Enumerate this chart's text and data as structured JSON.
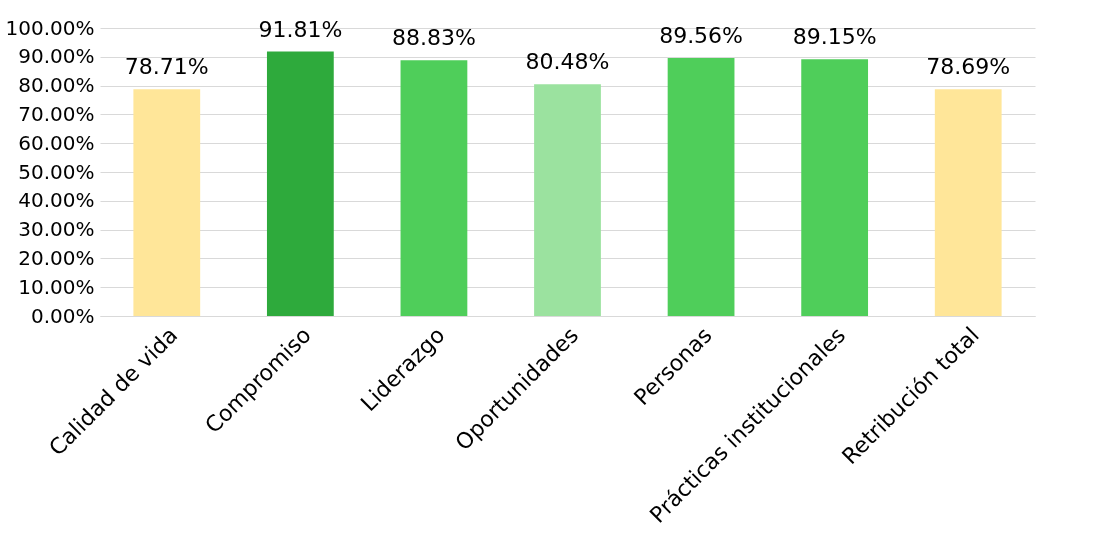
{
  "chart_data": {
    "type": "bar",
    "categories": [
      "Calidad de vida",
      "Compromiso",
      "Liderazgo",
      "Oportunidades",
      "Personas",
      "Prácticas institucionales",
      "Retribución total"
    ],
    "values": [
      78.71,
      91.81,
      88.83,
      80.48,
      89.56,
      89.15,
      78.69
    ],
    "colors": [
      "#ffe699",
      "#2eaa3c",
      "#4fce5a",
      "#9be29f",
      "#4fce5a",
      "#4fce5a",
      "#ffe699"
    ],
    "value_labels": [
      "78.71%",
      "91.81%",
      "88.83%",
      "80.48%",
      "89.56%",
      "89.15%",
      "78.69%"
    ],
    "ylim": [
      0,
      100
    ],
    "yticks": [
      {
        "value": 0,
        "label": "0.00%"
      },
      {
        "value": 10,
        "label": "10.00%"
      },
      {
        "value": 20,
        "label": "20.00%"
      },
      {
        "value": 30,
        "label": "30.00%"
      },
      {
        "value": 40,
        "label": "40.00%"
      },
      {
        "value": 50,
        "label": "50.00%"
      },
      {
        "value": 60,
        "label": "60.00%"
      },
      {
        "value": 70,
        "label": "70.00%"
      },
      {
        "value": 80,
        "label": "80.00%"
      },
      {
        "value": 90,
        "label": "90.00%"
      },
      {
        "value": 100,
        "label": "100.00%"
      }
    ],
    "grid": "y"
  }
}
